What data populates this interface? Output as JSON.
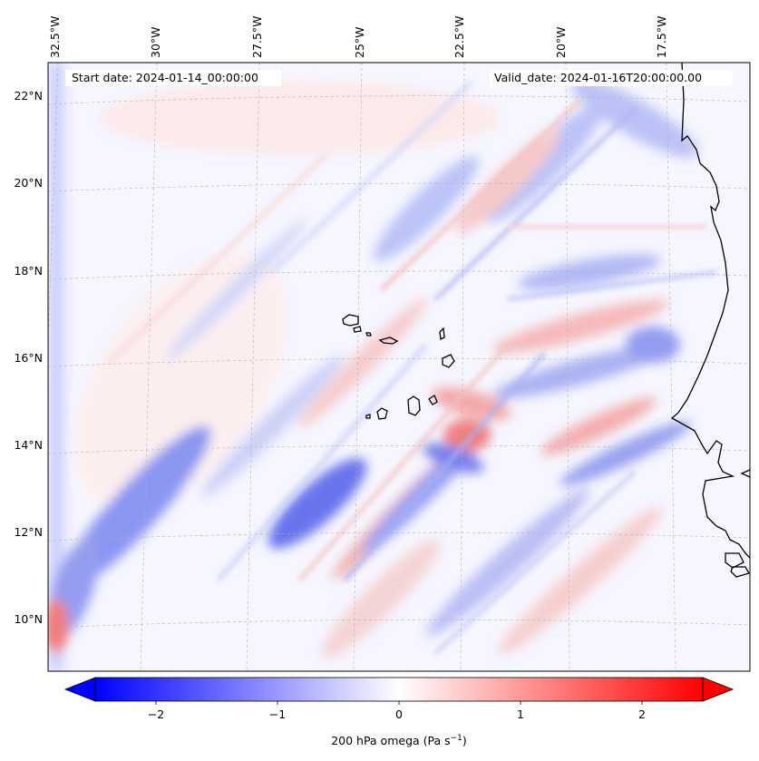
{
  "header": {
    "start_date": "Start date: 2024-01-14_00:00:00",
    "valid_date": "Valid_date: 2024-01-16T20:00:00.00"
  },
  "longitude_labels": [
    "32.5°W",
    "30°W",
    "27.5°W",
    "25°W",
    "22.5°W",
    "20°W",
    "17.5°W"
  ],
  "latitude_labels": [
    "22°N",
    "20°N",
    "18°N",
    "16°N",
    "14°N",
    "12°N",
    "10°N"
  ],
  "colorbar": {
    "label_main": "200 hPa omega (Pa s",
    "label_exp": "−1",
    "label_close": ")",
    "ticks": [
      "−2",
      "−1",
      "0",
      "1",
      "2"
    ],
    "tick_values": [
      -2,
      -1,
      0,
      1,
      2
    ],
    "vmin": -2.5,
    "vmax": 2.5,
    "extend": "both",
    "colormap": "bwr",
    "color_min": "#0000ff",
    "color_mid": "#ffffff",
    "color_max": "#ff0000"
  },
  "map": {
    "field": "200 hPa omega",
    "projection": "lambert conformal",
    "coastline_color": "#000000",
    "gridline_color": "#b0b0b0",
    "gridline_style": "dashed"
  }
}
